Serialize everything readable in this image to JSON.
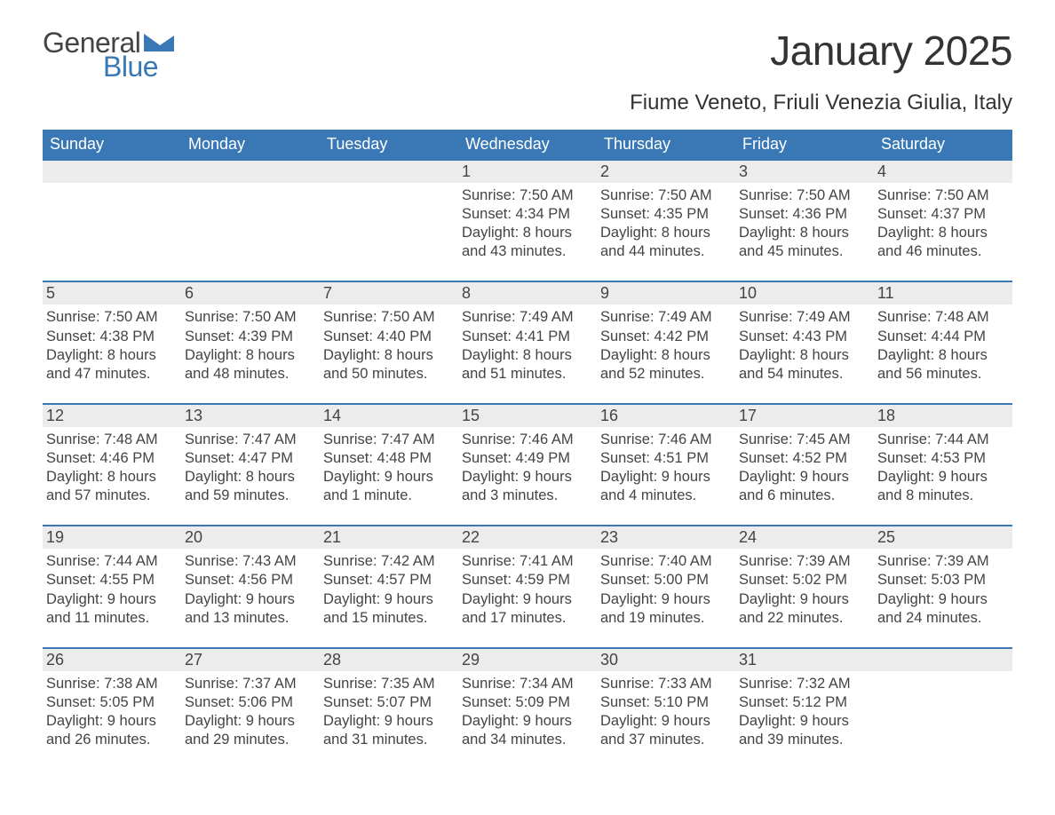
{
  "brand": {
    "word1": "General",
    "word2": "Blue",
    "word1_color": "#444444",
    "word2_color": "#3a78b5",
    "triangle_color": "#3a78b5",
    "font_size_pt": 24
  },
  "title": {
    "text": "January 2025",
    "font_size_pt": 34,
    "color": "#333333"
  },
  "subtitle": {
    "text": "Fiume Veneto, Friuli Venezia Giulia, Italy",
    "font_size_pt": 18,
    "color": "#333333"
  },
  "calendar": {
    "header_bg": "#3a78b5",
    "header_text_color": "#ffffff",
    "daynum_bg": "#ececec",
    "daynum_border_top": "#3a78b5",
    "body_text_color": "#444444",
    "body_font_size_pt": 12,
    "columns": [
      "Sunday",
      "Monday",
      "Tuesday",
      "Wednesday",
      "Thursday",
      "Friday",
      "Saturday"
    ],
    "weeks": [
      {
        "nums": [
          "",
          "",
          "",
          "1",
          "2",
          "3",
          "4"
        ],
        "cells": [
          null,
          null,
          null,
          {
            "sunrise": "Sunrise: 7:50 AM",
            "sunset": "Sunset: 4:34 PM",
            "day1": "Daylight: 8 hours",
            "day2": "and 43 minutes."
          },
          {
            "sunrise": "Sunrise: 7:50 AM",
            "sunset": "Sunset: 4:35 PM",
            "day1": "Daylight: 8 hours",
            "day2": "and 44 minutes."
          },
          {
            "sunrise": "Sunrise: 7:50 AM",
            "sunset": "Sunset: 4:36 PM",
            "day1": "Daylight: 8 hours",
            "day2": "and 45 minutes."
          },
          {
            "sunrise": "Sunrise: 7:50 AM",
            "sunset": "Sunset: 4:37 PM",
            "day1": "Daylight: 8 hours",
            "day2": "and 46 minutes."
          }
        ]
      },
      {
        "nums": [
          "5",
          "6",
          "7",
          "8",
          "9",
          "10",
          "11"
        ],
        "cells": [
          {
            "sunrise": "Sunrise: 7:50 AM",
            "sunset": "Sunset: 4:38 PM",
            "day1": "Daylight: 8 hours",
            "day2": "and 47 minutes."
          },
          {
            "sunrise": "Sunrise: 7:50 AM",
            "sunset": "Sunset: 4:39 PM",
            "day1": "Daylight: 8 hours",
            "day2": "and 48 minutes."
          },
          {
            "sunrise": "Sunrise: 7:50 AM",
            "sunset": "Sunset: 4:40 PM",
            "day1": "Daylight: 8 hours",
            "day2": "and 50 minutes."
          },
          {
            "sunrise": "Sunrise: 7:49 AM",
            "sunset": "Sunset: 4:41 PM",
            "day1": "Daylight: 8 hours",
            "day2": "and 51 minutes."
          },
          {
            "sunrise": "Sunrise: 7:49 AM",
            "sunset": "Sunset: 4:42 PM",
            "day1": "Daylight: 8 hours",
            "day2": "and 52 minutes."
          },
          {
            "sunrise": "Sunrise: 7:49 AM",
            "sunset": "Sunset: 4:43 PM",
            "day1": "Daylight: 8 hours",
            "day2": "and 54 minutes."
          },
          {
            "sunrise": "Sunrise: 7:48 AM",
            "sunset": "Sunset: 4:44 PM",
            "day1": "Daylight: 8 hours",
            "day2": "and 56 minutes."
          }
        ]
      },
      {
        "nums": [
          "12",
          "13",
          "14",
          "15",
          "16",
          "17",
          "18"
        ],
        "cells": [
          {
            "sunrise": "Sunrise: 7:48 AM",
            "sunset": "Sunset: 4:46 PM",
            "day1": "Daylight: 8 hours",
            "day2": "and 57 minutes."
          },
          {
            "sunrise": "Sunrise: 7:47 AM",
            "sunset": "Sunset: 4:47 PM",
            "day1": "Daylight: 8 hours",
            "day2": "and 59 minutes."
          },
          {
            "sunrise": "Sunrise: 7:47 AM",
            "sunset": "Sunset: 4:48 PM",
            "day1": "Daylight: 9 hours",
            "day2": "and 1 minute."
          },
          {
            "sunrise": "Sunrise: 7:46 AM",
            "sunset": "Sunset: 4:49 PM",
            "day1": "Daylight: 9 hours",
            "day2": "and 3 minutes."
          },
          {
            "sunrise": "Sunrise: 7:46 AM",
            "sunset": "Sunset: 4:51 PM",
            "day1": "Daylight: 9 hours",
            "day2": "and 4 minutes."
          },
          {
            "sunrise": "Sunrise: 7:45 AM",
            "sunset": "Sunset: 4:52 PM",
            "day1": "Daylight: 9 hours",
            "day2": "and 6 minutes."
          },
          {
            "sunrise": "Sunrise: 7:44 AM",
            "sunset": "Sunset: 4:53 PM",
            "day1": "Daylight: 9 hours",
            "day2": "and 8 minutes."
          }
        ]
      },
      {
        "nums": [
          "19",
          "20",
          "21",
          "22",
          "23",
          "24",
          "25"
        ],
        "cells": [
          {
            "sunrise": "Sunrise: 7:44 AM",
            "sunset": "Sunset: 4:55 PM",
            "day1": "Daylight: 9 hours",
            "day2": "and 11 minutes."
          },
          {
            "sunrise": "Sunrise: 7:43 AM",
            "sunset": "Sunset: 4:56 PM",
            "day1": "Daylight: 9 hours",
            "day2": "and 13 minutes."
          },
          {
            "sunrise": "Sunrise: 7:42 AM",
            "sunset": "Sunset: 4:57 PM",
            "day1": "Daylight: 9 hours",
            "day2": "and 15 minutes."
          },
          {
            "sunrise": "Sunrise: 7:41 AM",
            "sunset": "Sunset: 4:59 PM",
            "day1": "Daylight: 9 hours",
            "day2": "and 17 minutes."
          },
          {
            "sunrise": "Sunrise: 7:40 AM",
            "sunset": "Sunset: 5:00 PM",
            "day1": "Daylight: 9 hours",
            "day2": "and 19 minutes."
          },
          {
            "sunrise": "Sunrise: 7:39 AM",
            "sunset": "Sunset: 5:02 PM",
            "day1": "Daylight: 9 hours",
            "day2": "and 22 minutes."
          },
          {
            "sunrise": "Sunrise: 7:39 AM",
            "sunset": "Sunset: 5:03 PM",
            "day1": "Daylight: 9 hours",
            "day2": "and 24 minutes."
          }
        ]
      },
      {
        "nums": [
          "26",
          "27",
          "28",
          "29",
          "30",
          "31",
          ""
        ],
        "cells": [
          {
            "sunrise": "Sunrise: 7:38 AM",
            "sunset": "Sunset: 5:05 PM",
            "day1": "Daylight: 9 hours",
            "day2": "and 26 minutes."
          },
          {
            "sunrise": "Sunrise: 7:37 AM",
            "sunset": "Sunset: 5:06 PM",
            "day1": "Daylight: 9 hours",
            "day2": "and 29 minutes."
          },
          {
            "sunrise": "Sunrise: 7:35 AM",
            "sunset": "Sunset: 5:07 PM",
            "day1": "Daylight: 9 hours",
            "day2": "and 31 minutes."
          },
          {
            "sunrise": "Sunrise: 7:34 AM",
            "sunset": "Sunset: 5:09 PM",
            "day1": "Daylight: 9 hours",
            "day2": "and 34 minutes."
          },
          {
            "sunrise": "Sunrise: 7:33 AM",
            "sunset": "Sunset: 5:10 PM",
            "day1": "Daylight: 9 hours",
            "day2": "and 37 minutes."
          },
          {
            "sunrise": "Sunrise: 7:32 AM",
            "sunset": "Sunset: 5:12 PM",
            "day1": "Daylight: 9 hours",
            "day2": "and 39 minutes."
          },
          null
        ]
      }
    ]
  }
}
